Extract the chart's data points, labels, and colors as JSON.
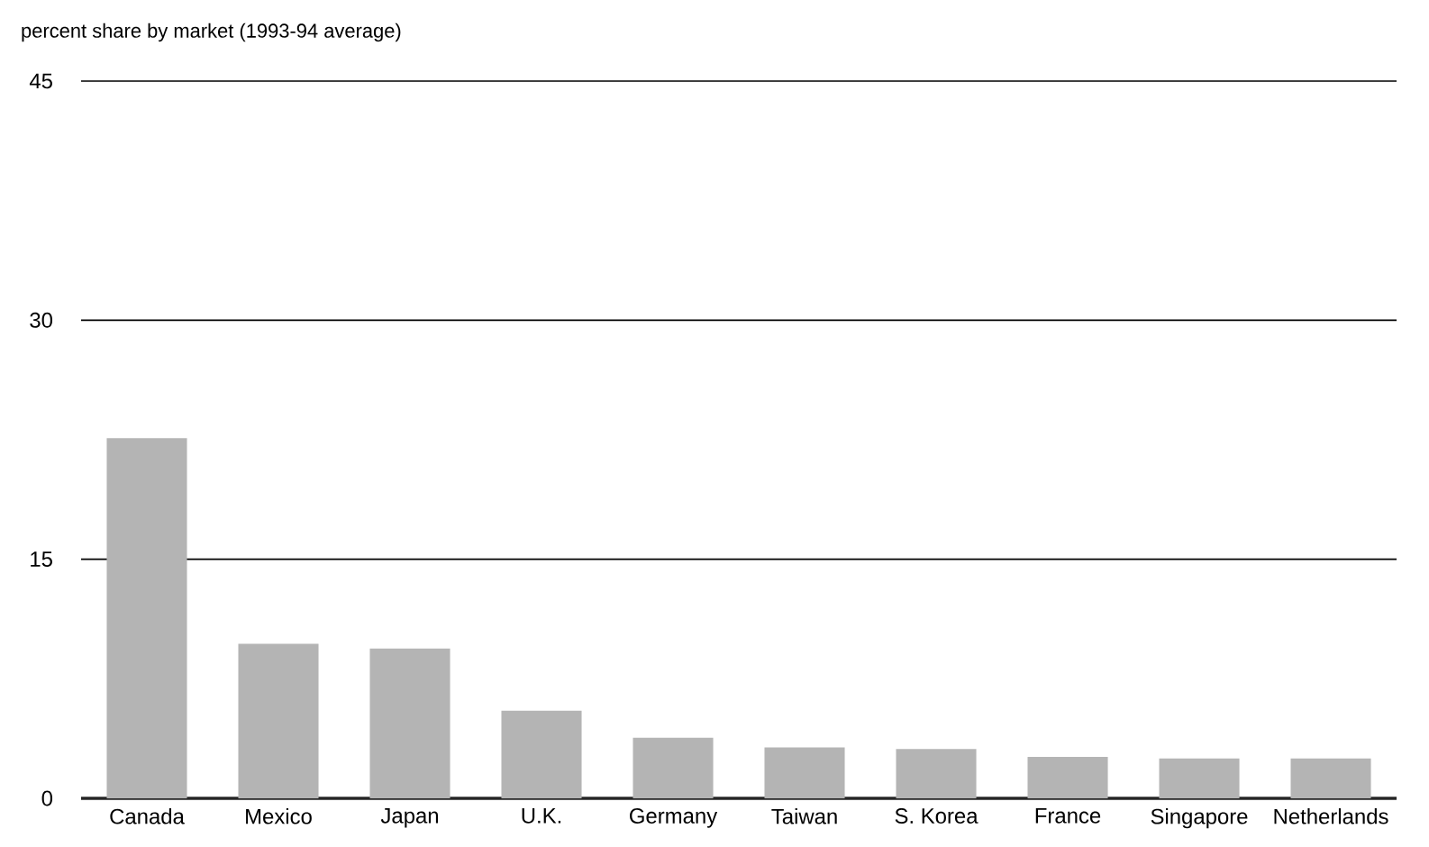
{
  "chart_data": {
    "type": "bar",
    "title": "percent share by market (1993-94 average)",
    "categories": [
      "Canada",
      "Mexico",
      "Japan",
      "U.K.",
      "Germany",
      "Taiwan",
      "S. Korea",
      "France",
      "Singapore",
      "Netherlands"
    ],
    "values": [
      22.6,
      9.7,
      9.4,
      5.5,
      3.8,
      3.2,
      3.1,
      2.6,
      2.5,
      2.5
    ],
    "color": "#b4b4b4",
    "ylim": [
      0,
      45
    ],
    "yticks": [
      0,
      15,
      30,
      45
    ],
    "grid": "y"
  }
}
